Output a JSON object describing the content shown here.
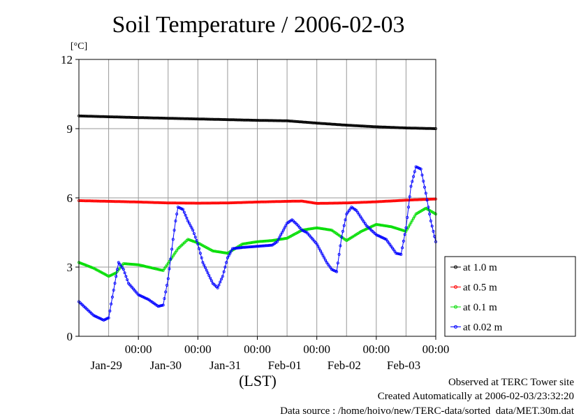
{
  "chart_data": {
    "type": "line",
    "title": "Soil Temperature / 2006-02-03",
    "ylabel": "[°C]",
    "xlabel": "(LST)",
    "ylim": [
      0,
      12
    ],
    "yticks": [
      "0",
      "3",
      "6",
      "9",
      "12"
    ],
    "xticks": [
      {
        "time": "00:00",
        "date": "Jan-29"
      },
      {
        "time": "00:00",
        "date": "Jan-30"
      },
      {
        "time": "00:00",
        "date": "Jan-31"
      },
      {
        "time": "00:00",
        "date": "Feb-01"
      },
      {
        "time": "00:00",
        "date": "Feb-02"
      },
      {
        "time": "00:00",
        "date": "Feb-03"
      }
    ],
    "x_unit": "hours from 2006-01-28 00:00 LST",
    "xlim": [
      0,
      144
    ],
    "grid": true,
    "legend_position": "right",
    "series": [
      {
        "name": "at 1.0 m",
        "color": "#000000",
        "x": [
          0,
          24,
          48,
          72,
          84,
          96,
          108,
          120,
          132,
          144
        ],
        "y": [
          9.55,
          9.48,
          9.42,
          9.36,
          9.34,
          9.24,
          9.15,
          9.08,
          9.03,
          9.0
        ]
      },
      {
        "name": "at 0.5 m",
        "color": "#ff0000",
        "x": [
          0,
          24,
          36,
          48,
          60,
          72,
          84,
          90,
          96,
          108,
          120,
          132,
          144
        ],
        "y": [
          5.88,
          5.82,
          5.78,
          5.77,
          5.78,
          5.82,
          5.85,
          5.86,
          5.76,
          5.78,
          5.83,
          5.9,
          5.95
        ]
      },
      {
        "name": "at 0.1 m",
        "color": "#00dd00",
        "x": [
          0,
          6,
          12,
          15,
          18,
          24,
          30,
          34,
          40,
          44,
          48,
          54,
          60,
          66,
          72,
          78,
          84,
          90,
          96,
          102,
          108,
          114,
          120,
          126,
          132,
          136,
          140,
          144
        ],
        "y": [
          3.2,
          2.95,
          2.6,
          2.75,
          3.15,
          3.1,
          2.95,
          2.85,
          3.8,
          4.2,
          4.05,
          3.7,
          3.6,
          4.0,
          4.1,
          4.15,
          4.25,
          4.6,
          4.7,
          4.6,
          4.15,
          4.55,
          4.85,
          4.75,
          4.55,
          5.3,
          5.55,
          5.3
        ]
      },
      {
        "name": "at 0.02 m",
        "color": "#0000ff",
        "x": [
          0,
          6,
          10,
          12,
          14,
          16,
          18,
          20,
          24,
          28,
          32,
          34,
          36,
          38,
          39,
          40,
          42,
          44,
          46,
          48,
          50,
          54,
          56,
          58,
          60,
          62,
          66,
          72,
          78,
          80,
          84,
          86,
          88,
          90,
          92,
          96,
          98,
          100,
          102,
          104,
          106,
          108,
          110,
          112,
          116,
          120,
          124,
          126,
          128,
          130,
          132,
          134,
          136,
          138,
          140,
          142,
          144
        ],
        "y": [
          1.5,
          0.9,
          0.7,
          0.8,
          2.0,
          3.2,
          2.9,
          2.3,
          1.8,
          1.6,
          1.3,
          1.35,
          2.5,
          4.2,
          5.0,
          5.6,
          5.5,
          5.0,
          4.6,
          4.0,
          3.2,
          2.3,
          2.1,
          2.6,
          3.4,
          3.8,
          3.85,
          3.9,
          3.95,
          4.1,
          4.9,
          5.05,
          4.85,
          4.6,
          4.5,
          4.0,
          3.6,
          3.2,
          2.9,
          2.8,
          4.3,
          5.3,
          5.6,
          5.45,
          4.8,
          4.4,
          4.2,
          3.9,
          3.6,
          3.55,
          4.7,
          6.5,
          7.35,
          7.25,
          6.2,
          5.0,
          4.1
        ]
      }
    ]
  },
  "footer": {
    "site": "Observed at TERC Tower site",
    "created": "Created Automatically at 2006-02-03/23:32:20",
    "source": "Data source : /home/hoivo/new/TERC-data/sorted  data/MET.30m.dat"
  }
}
